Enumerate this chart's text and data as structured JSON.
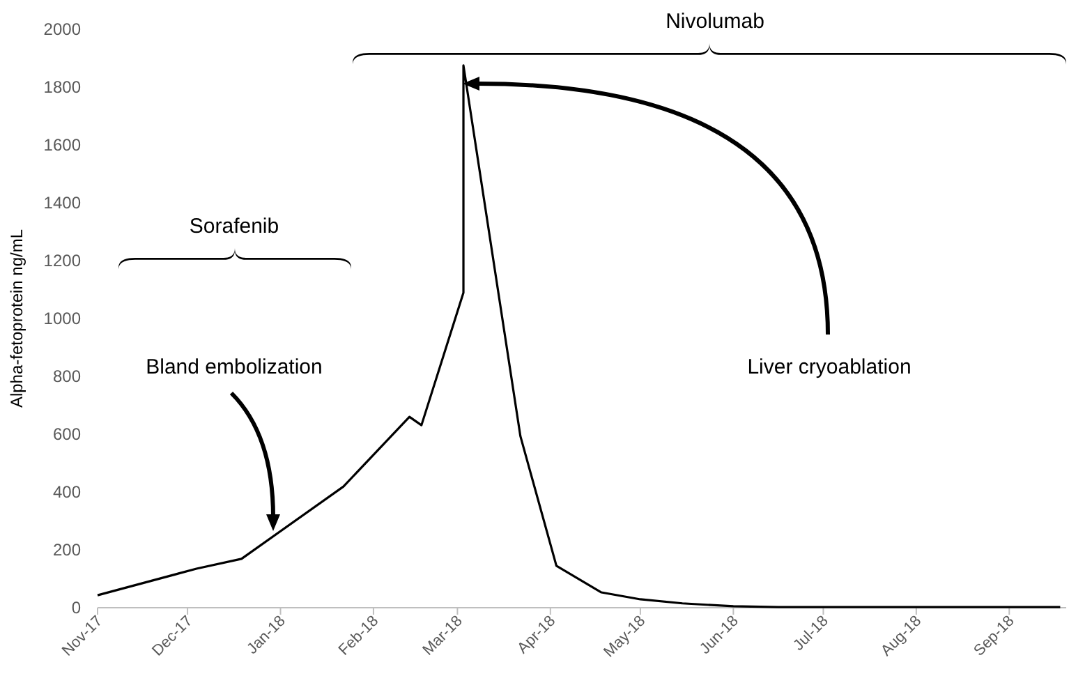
{
  "chart_data": {
    "type": "line",
    "ylabel": "Alpha-fetoprotein ng/mL",
    "x": [
      "2017-11-01",
      "2017-12-04",
      "2017-12-19",
      "2018-01-22",
      "2018-02-13",
      "2018-02-17",
      "2018-03-03",
      "2018-03-03",
      "2018-03-22",
      "2018-04-03",
      "2018-04-18",
      "2018-05-01",
      "2018-05-15",
      "2018-06-01",
      "2018-06-16",
      "2018-09-18"
    ],
    "series": [
      {
        "color": "#000000",
        "values": [
          43,
          135,
          169,
          419,
          660,
          631,
          1089,
          1875,
          593,
          145,
          53,
          29,
          15,
          5,
          2,
          2
        ]
      }
    ],
    "xlim": [
      "2017-11-01",
      "2018-09-20"
    ],
    "xticks": [
      {
        "value": "2017-11-01",
        "label": "Nov-17"
      },
      {
        "value": "2017-12-01",
        "label": "Dec-17"
      },
      {
        "value": "2018-01-01",
        "label": "Jan-18"
      },
      {
        "value": "2018-02-01",
        "label": "Feb-18"
      },
      {
        "value": "2018-03-01",
        "label": "Mar-18"
      },
      {
        "value": "2018-04-01",
        "label": "Apr-18"
      },
      {
        "value": "2018-05-01",
        "label": "May-18"
      },
      {
        "value": "2018-06-01",
        "label": "Jun-18"
      },
      {
        "value": "2018-07-01",
        "label": "Jul-18"
      },
      {
        "value": "2018-08-01",
        "label": "Aug-18"
      },
      {
        "value": "2018-09-01",
        "label": "Sep-18"
      }
    ],
    "ylim": [
      0,
      2000
    ],
    "yticks": [
      0,
      200,
      400,
      600,
      800,
      1000,
      1200,
      1400,
      1600,
      1800,
      2000
    ],
    "grid": false,
    "marker": "none",
    "line_style": "solid",
    "annotations": [
      "Nivolumab",
      "Sorafenib",
      "Bland embolization",
      "Liver cryoablation"
    ]
  }
}
